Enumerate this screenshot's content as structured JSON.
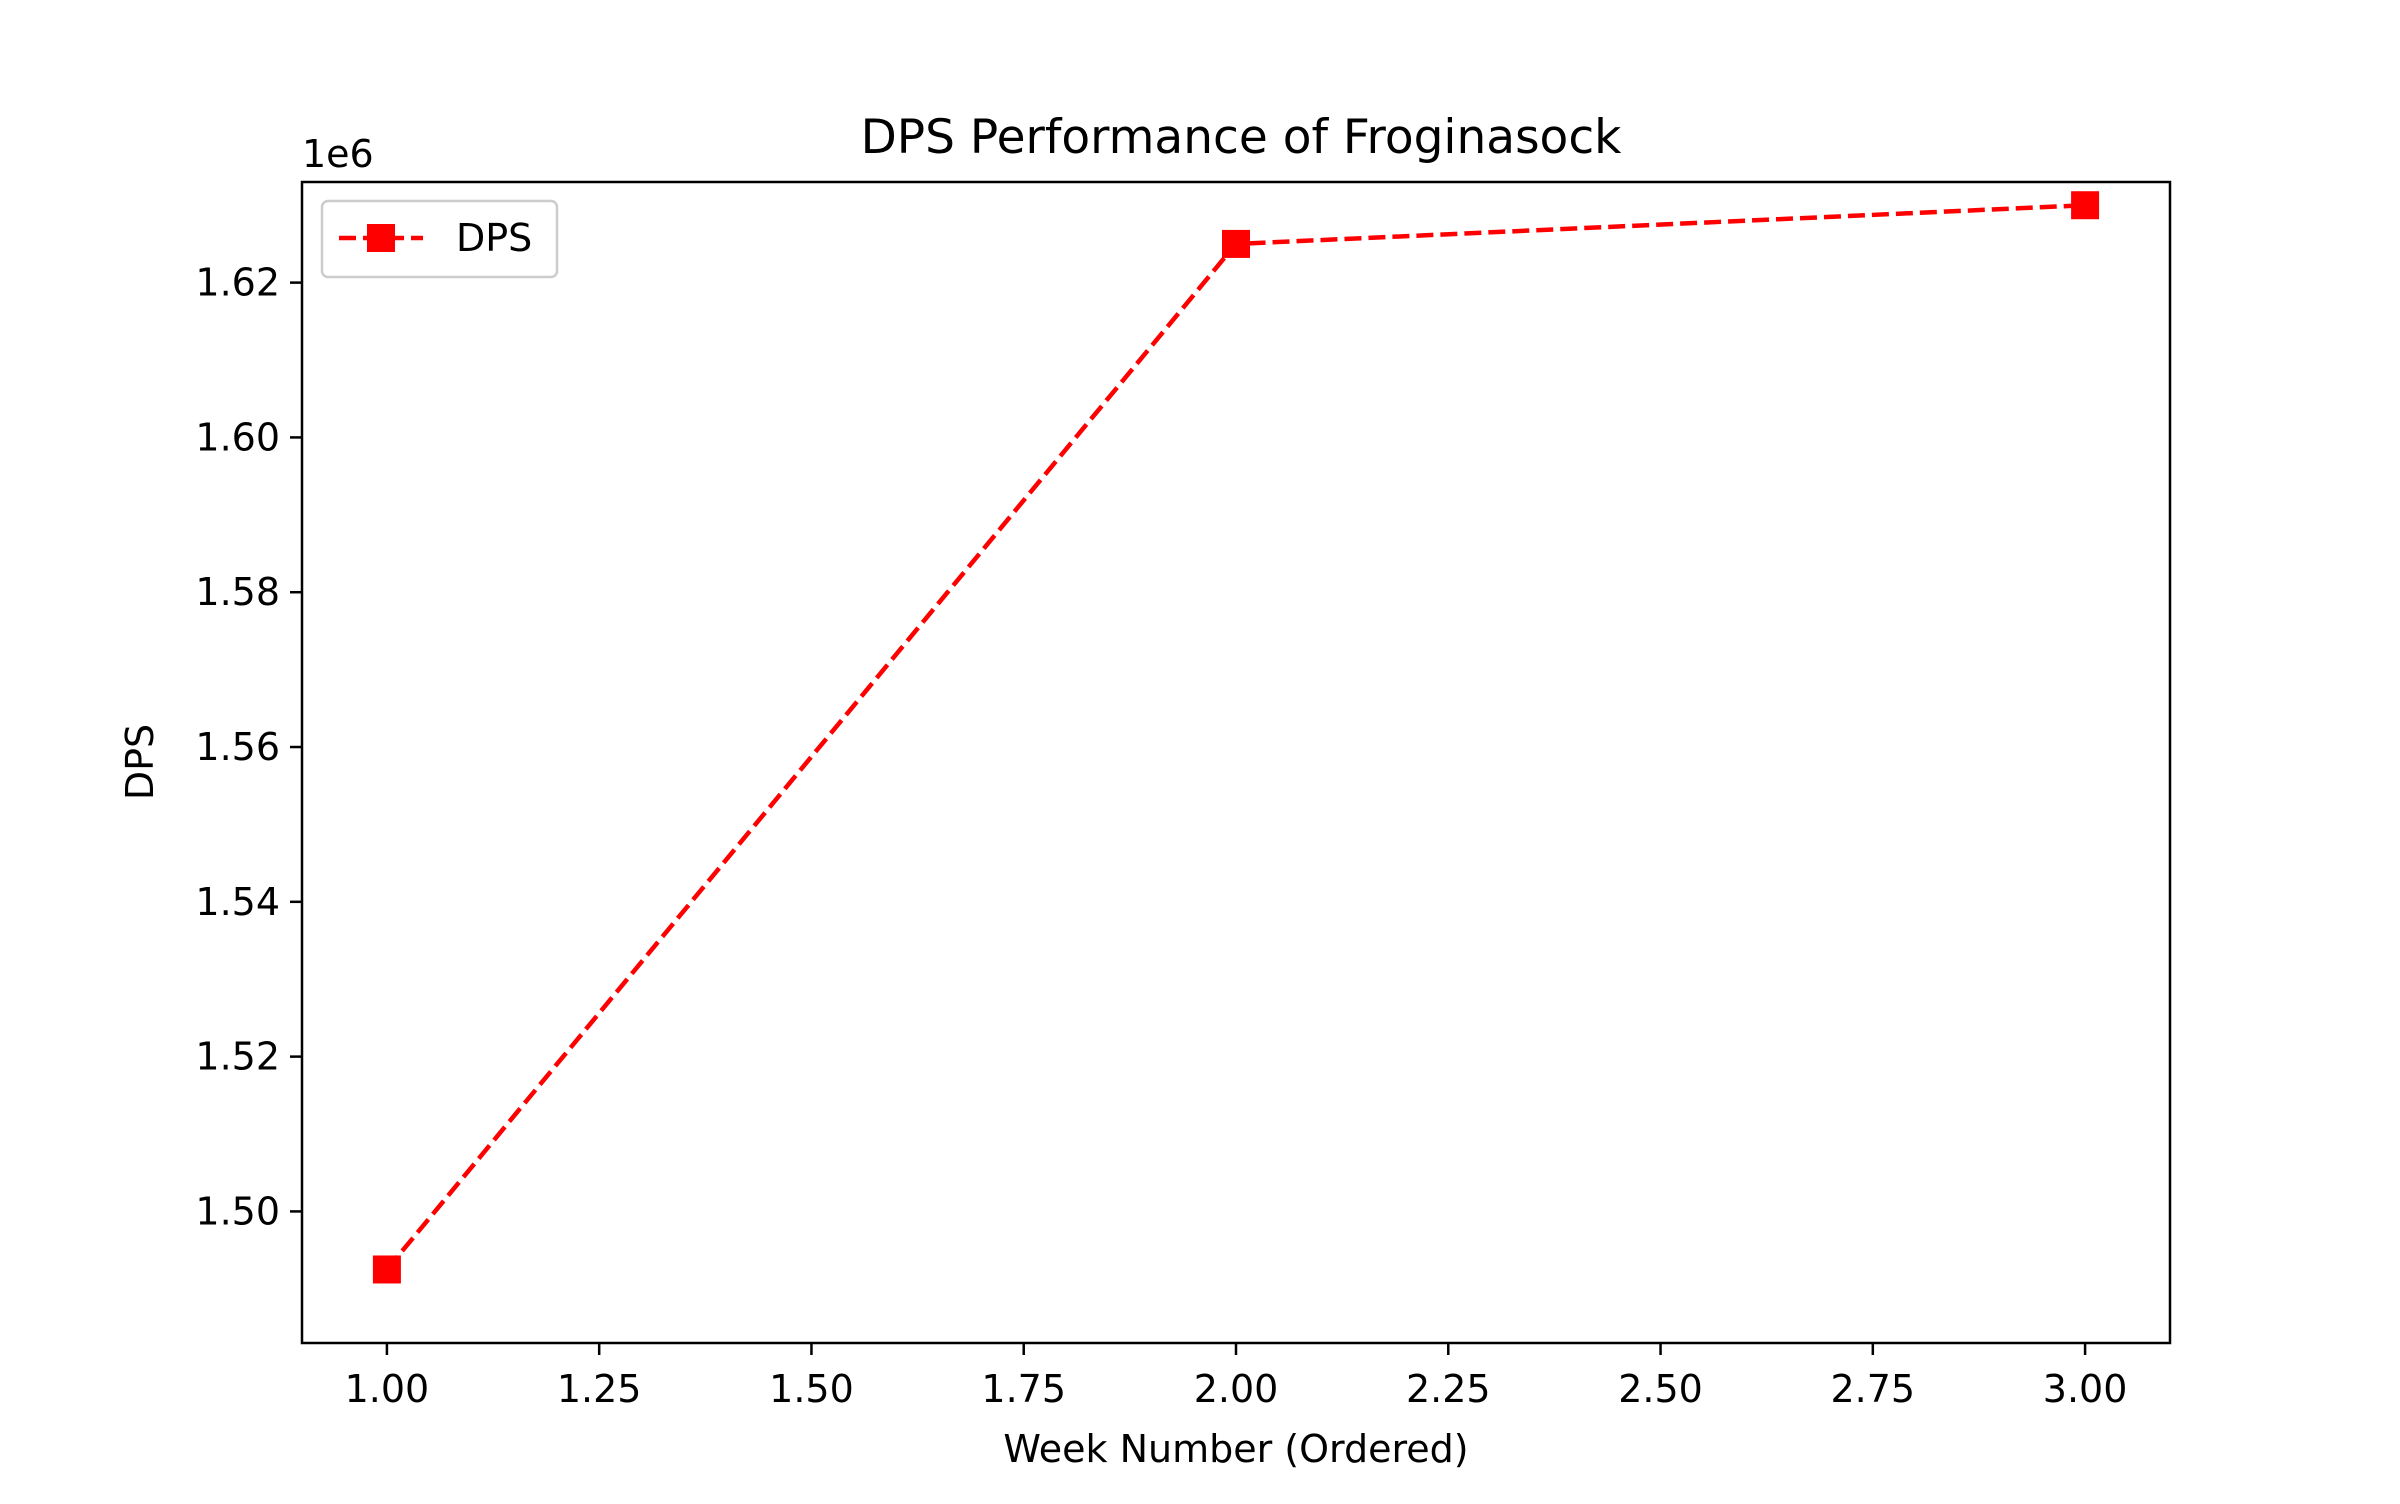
{
  "chart_data": {
    "type": "line",
    "title": "DPS Performance of Froginasock",
    "xlabel": "Week Number (Ordered)",
    "ylabel": "DPS",
    "y_offset_label": "1e6",
    "x": [
      1,
      2,
      3
    ],
    "series": [
      {
        "name": "DPS",
        "values": [
          1492500,
          1625000,
          1630000
        ],
        "color": "#ff0000",
        "line_style": "dashed",
        "marker": "square"
      }
    ],
    "xlim": [
      0.9,
      3.1
    ],
    "ylim": [
      1483000,
      1633000
    ],
    "x_ticks": [
      1.0,
      1.25,
      1.5,
      1.75,
      2.0,
      2.25,
      2.5,
      2.75,
      3.0
    ],
    "x_tick_labels": [
      "1.00",
      "1.25",
      "1.50",
      "1.75",
      "2.00",
      "2.25",
      "2.50",
      "2.75",
      "3.00"
    ],
    "y_ticks": [
      1500000,
      1520000,
      1540000,
      1560000,
      1580000,
      1600000,
      1620000
    ],
    "y_tick_labels": [
      "1.50",
      "1.52",
      "1.54",
      "1.56",
      "1.58",
      "1.60",
      "1.62"
    ],
    "grid": false,
    "legend_position": "upper-left"
  }
}
